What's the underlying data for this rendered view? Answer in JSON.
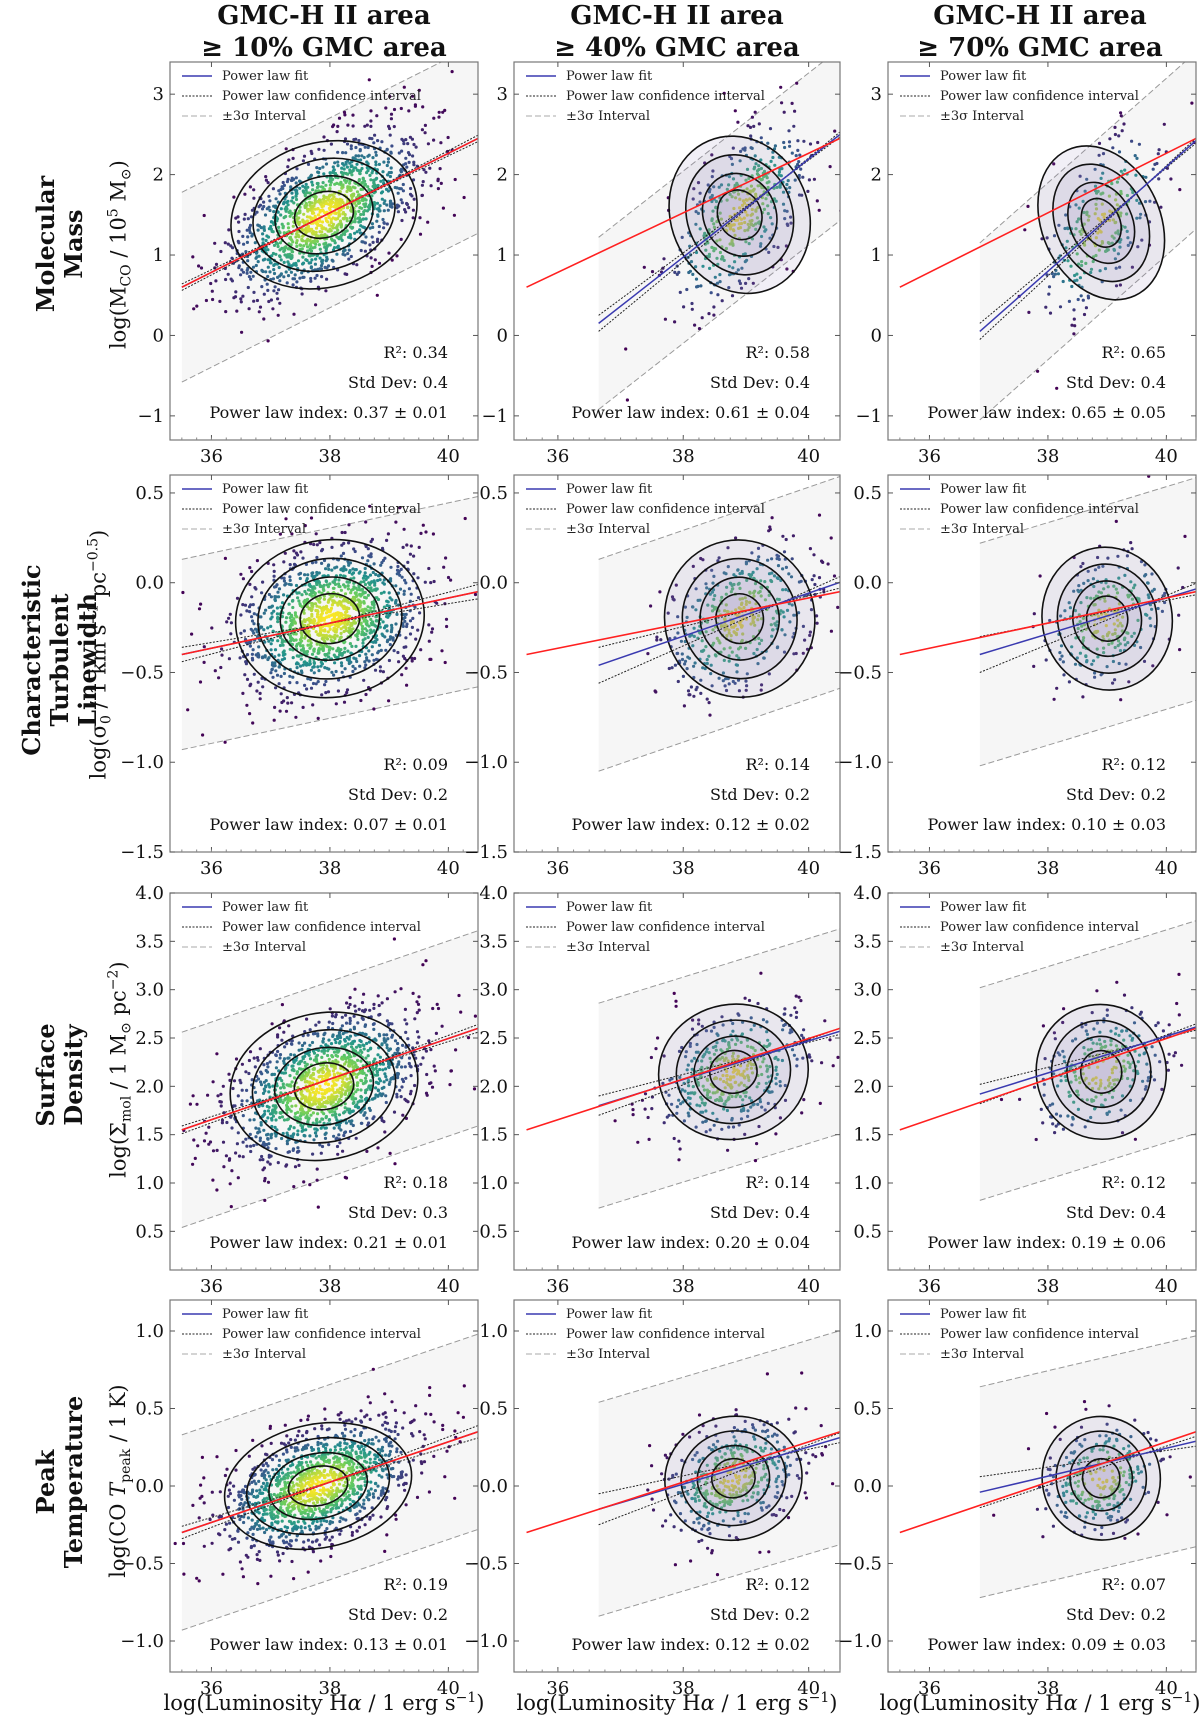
{
  "column_titles": [
    {
      "line1": "GMC-H II area",
      "line2": "≥ 10% GMC area"
    },
    {
      "line1": "GMC-H II area",
      "line2": "≥ 40% GMC area"
    },
    {
      "line1": "GMC-H II area",
      "line2": "≥ 70% GMC area"
    }
  ],
  "row_titles": [
    {
      "title": "Molecular Mass",
      "lines": [
        "Molecular",
        "Mass"
      ],
      "ylabel": "log(M_CO / 10^5 M⊙)"
    },
    {
      "title": "Characteristic Turbulent Linewidth",
      "lines": [
        "Characteristic",
        "Turbulent",
        "Linewidth"
      ],
      "ylabel": "log(σ0 / 1 km s^-1 pc^-0.5)"
    },
    {
      "title": "Surface Density",
      "lines": [
        "Surface",
        "Density"
      ],
      "ylabel": "log(Σmol / 1 M⊙ pc^-2)"
    },
    {
      "title": "Peak Temperature",
      "lines": [
        "Peak",
        "Temperature"
      ],
      "ylabel": "log(CO T_peak / 1 K)"
    }
  ],
  "xlabel": "log(Luminosity Hα / 1 erg s⁻¹)",
  "legend": {
    "fit": "Power law fit",
    "ci": "Power law confidence interval",
    "sigma": "±3σ Interval"
  },
  "stat_labels": {
    "r2": "R²: ",
    "std": "Std Dev: ",
    "index": "Power law index: "
  },
  "colors": {
    "fit": "#3a3ab0",
    "reference": "#ff2020",
    "scatter_low": "#440154",
    "scatter_high": "#fde725",
    "band": "#f6f6f6",
    "kde_fill": "#8a7fb8"
  },
  "chart_data": [
    {
      "type": "scatter",
      "row": 0,
      "col": 0,
      "xlim": [
        35.3,
        40.5
      ],
      "ylim": [
        -1.3,
        3.4
      ],
      "xticks": [
        36,
        38,
        40
      ],
      "yticks": [
        -1,
        0,
        1,
        2,
        3
      ],
      "ytick_labels": [
        "−1",
        "0",
        "1",
        "2",
        "3"
      ],
      "fit": {
        "slope": 0.37,
        "intercept": 0.6,
        "x0": 35.5
      },
      "reference": {
        "slope": 0.37,
        "intercept": 0.6,
        "x0": 35.5
      },
      "sigma_width": 1.18,
      "band_x": [
        35.5,
        40.5
      ],
      "center": [
        37.9,
        1.5
      ],
      "spread": [
        0.8,
        0.45
      ],
      "n": 2600,
      "r2": "0.34",
      "std": "0.4",
      "index": "0.37 ± 0.01"
    },
    {
      "type": "scatter",
      "row": 0,
      "col": 1,
      "xlim": [
        35.3,
        40.5
      ],
      "ylim": [
        -1.3,
        3.4
      ],
      "xticks": [
        36,
        38,
        40
      ],
      "yticks": [
        -1,
        0,
        1,
        2,
        3
      ],
      "ytick_labels": [
        "−1",
        "0",
        "1",
        "2",
        "3"
      ],
      "fit": {
        "slope": 0.61,
        "intercept": 0.15,
        "x0": 36.65
      },
      "reference": {
        "slope": 0.37,
        "intercept": 0.6,
        "x0": 35.5
      },
      "sigma_width": 1.07,
      "band_x": [
        36.65,
        40.5
      ],
      "center": [
        38.9,
        1.5
      ],
      "spread": [
        0.55,
        0.5
      ],
      "n": 450,
      "r2": "0.58",
      "std": "0.4",
      "index": "0.61 ± 0.04"
    },
    {
      "type": "scatter",
      "row": 0,
      "col": 2,
      "xlim": [
        35.3,
        40.5
      ],
      "ylim": [
        -1.3,
        3.4
      ],
      "xticks": [
        36,
        38,
        40
      ],
      "yticks": [
        -1,
        0,
        1,
        2,
        3
      ],
      "ytick_labels": [
        "−1",
        "0",
        "1",
        "2",
        "3"
      ],
      "fit": {
        "slope": 0.65,
        "intercept": 0.05,
        "x0": 36.85
      },
      "reference": {
        "slope": 0.37,
        "intercept": 0.6,
        "x0": 35.5
      },
      "sigma_width": 1.1,
      "band_x": [
        36.85,
        40.5
      ],
      "center": [
        38.9,
        1.4
      ],
      "spread": [
        0.5,
        0.5
      ],
      "n": 260,
      "r2": "0.65",
      "std": "0.4",
      "index": "0.65 ± 0.05"
    },
    {
      "type": "scatter",
      "row": 1,
      "col": 0,
      "xlim": [
        35.3,
        40.5
      ],
      "ylim": [
        -1.5,
        0.6
      ],
      "xticks": [
        36,
        38,
        40
      ],
      "yticks": [
        -1.5,
        -1.0,
        -0.5,
        0.0,
        0.5
      ],
      "ytick_labels": [
        "−1.5",
        "−1.0",
        "−0.5",
        "0.0",
        "0.5"
      ],
      "fit": {
        "slope": 0.07,
        "intercept": -0.4,
        "x0": 35.5
      },
      "reference": {
        "slope": 0.07,
        "intercept": -0.4,
        "x0": 35.5
      },
      "sigma_width": 0.53,
      "band_x": [
        35.5,
        40.5
      ],
      "center": [
        38.0,
        -0.2
      ],
      "spread": [
        0.8,
        0.22
      ],
      "n": 2600,
      "r2": "0.09",
      "std": "0.2",
      "index": "0.07 ± 0.01"
    },
    {
      "type": "scatter",
      "row": 1,
      "col": 1,
      "xlim": [
        35.3,
        40.5
      ],
      "ylim": [
        -1.5,
        0.6
      ],
      "xticks": [
        36,
        38,
        40
      ],
      "yticks": [
        -1.5,
        -1.0,
        -0.5,
        0.0,
        0.5
      ],
      "ytick_labels": [
        "−1.5",
        "−1.0",
        "−0.5",
        "0.0",
        "0.5"
      ],
      "fit": {
        "slope": 0.12,
        "intercept": -0.46,
        "x0": 36.65
      },
      "reference": {
        "slope": 0.07,
        "intercept": -0.4,
        "x0": 35.5
      },
      "sigma_width": 0.59,
      "band_x": [
        36.65,
        40.5
      ],
      "center": [
        38.9,
        -0.2
      ],
      "spread": [
        0.6,
        0.22
      ],
      "n": 450,
      "r2": "0.14",
      "std": "0.2",
      "index": "0.12 ± 0.02"
    },
    {
      "type": "scatter",
      "row": 1,
      "col": 2,
      "xlim": [
        35.3,
        40.5
      ],
      "ylim": [
        -1.5,
        0.6
      ],
      "xticks": [
        36,
        38,
        40
      ],
      "yticks": [
        -1.5,
        -1.0,
        -0.5,
        0.0,
        0.5
      ],
      "ytick_labels": [
        "−1.5",
        "−1.0",
        "−0.5",
        "0.0",
        "0.5"
      ],
      "fit": {
        "slope": 0.1,
        "intercept": -0.4,
        "x0": 36.85
      },
      "reference": {
        "slope": 0.07,
        "intercept": -0.4,
        "x0": 35.5
      },
      "sigma_width": 0.62,
      "band_x": [
        36.85,
        40.5
      ],
      "center": [
        39.0,
        -0.2
      ],
      "spread": [
        0.55,
        0.2
      ],
      "n": 260,
      "r2": "0.12",
      "std": "0.2",
      "index": "0.10 ± 0.03"
    },
    {
      "type": "scatter",
      "row": 2,
      "col": 0,
      "xlim": [
        35.3,
        40.5
      ],
      "ylim": [
        0.1,
        4.0
      ],
      "xticks": [
        36,
        38,
        40
      ],
      "yticks": [
        0.5,
        1.0,
        1.5,
        2.0,
        2.5,
        3.0,
        3.5,
        4.0
      ],
      "ytick_labels": [
        "0.5",
        "1.0",
        "1.5",
        "2.0",
        "2.5",
        "3.0",
        "3.5",
        "4.0"
      ],
      "fit": {
        "slope": 0.21,
        "intercept": 1.55,
        "x0": 35.5
      },
      "reference": {
        "slope": 0.21,
        "intercept": 1.55,
        "x0": 35.5
      },
      "sigma_width": 1.01,
      "band_x": [
        35.5,
        40.5
      ],
      "center": [
        37.9,
        2.0
      ],
      "spread": [
        0.8,
        0.38
      ],
      "n": 2600,
      "r2": "0.18",
      "std": "0.3",
      "index": "0.21 ± 0.01"
    },
    {
      "type": "scatter",
      "row": 2,
      "col": 1,
      "xlim": [
        35.3,
        40.5
      ],
      "ylim": [
        0.1,
        4.0
      ],
      "xticks": [
        36,
        38,
        40
      ],
      "yticks": [
        0.5,
        1.0,
        1.5,
        2.0,
        2.5,
        3.0,
        3.5,
        4.0
      ],
      "ytick_labels": [
        "0.5",
        "1.0",
        "1.5",
        "2.0",
        "2.5",
        "3.0",
        "3.5",
        "4.0"
      ],
      "fit": {
        "slope": 0.2,
        "intercept": 1.8,
        "x0": 36.65
      },
      "reference": {
        "slope": 0.21,
        "intercept": 1.55,
        "x0": 35.5
      },
      "sigma_width": 1.06,
      "band_x": [
        36.65,
        40.5
      ],
      "center": [
        38.8,
        2.15
      ],
      "spread": [
        0.6,
        0.35
      ],
      "n": 450,
      "r2": "0.14",
      "std": "0.4",
      "index": "0.20 ± 0.04"
    },
    {
      "type": "scatter",
      "row": 2,
      "col": 2,
      "xlim": [
        35.3,
        40.5
      ],
      "ylim": [
        0.1,
        4.0
      ],
      "xticks": [
        36,
        38,
        40
      ],
      "yticks": [
        0.5,
        1.0,
        1.5,
        2.0,
        2.5,
        3.0,
        3.5,
        4.0
      ],
      "ytick_labels": [
        "0.5",
        "1.0",
        "1.5",
        "2.0",
        "2.5",
        "3.0",
        "3.5",
        "4.0"
      ],
      "fit": {
        "slope": 0.19,
        "intercept": 1.92,
        "x0": 36.85
      },
      "reference": {
        "slope": 0.21,
        "intercept": 1.55,
        "x0": 35.5
      },
      "sigma_width": 1.1,
      "band_x": [
        36.85,
        40.5
      ],
      "center": [
        38.9,
        2.15
      ],
      "spread": [
        0.55,
        0.35
      ],
      "n": 260,
      "r2": "0.12",
      "std": "0.4",
      "index": "0.19 ± 0.06"
    },
    {
      "type": "scatter",
      "row": 3,
      "col": 0,
      "xlim": [
        35.3,
        40.5
      ],
      "ylim": [
        -1.2,
        1.2
      ],
      "xticks": [
        36,
        38,
        40
      ],
      "yticks": [
        -1.0,
        -0.5,
        0.0,
        0.5,
        1.0
      ],
      "ytick_labels": [
        "−1.0",
        "−0.5",
        "0.0",
        "0.5",
        "1.0"
      ],
      "fit": {
        "slope": 0.13,
        "intercept": -0.3,
        "x0": 35.5
      },
      "reference": {
        "slope": 0.13,
        "intercept": -0.3,
        "x0": 35.5
      },
      "sigma_width": 0.63,
      "band_x": [
        35.5,
        40.5
      ],
      "center": [
        37.8,
        0.0
      ],
      "spread": [
        0.8,
        0.2
      ],
      "n": 2600,
      "r2": "0.19",
      "std": "0.2",
      "index": "0.13 ± 0.01"
    },
    {
      "type": "scatter",
      "row": 3,
      "col": 1,
      "xlim": [
        35.3,
        40.5
      ],
      "ylim": [
        -1.2,
        1.2
      ],
      "xticks": [
        36,
        38,
        40
      ],
      "yticks": [
        -1.0,
        -0.5,
        0.0,
        0.5,
        1.0
      ],
      "ytick_labels": [
        "−1.0",
        "−0.5",
        "0.0",
        "0.5",
        "1.0"
      ],
      "fit": {
        "slope": 0.12,
        "intercept": -0.15,
        "x0": 36.65
      },
      "reference": {
        "slope": 0.13,
        "intercept": -0.3,
        "x0": 35.5
      },
      "sigma_width": 0.69,
      "band_x": [
        36.65,
        40.5
      ],
      "center": [
        38.8,
        0.05
      ],
      "spread": [
        0.55,
        0.2
      ],
      "n": 450,
      "r2": "0.12",
      "std": "0.2",
      "index": "0.12 ± 0.02"
    },
    {
      "type": "scatter",
      "row": 3,
      "col": 2,
      "xlim": [
        35.3,
        40.5
      ],
      "ylim": [
        -1.2,
        1.2
      ],
      "xticks": [
        36,
        38,
        40
      ],
      "yticks": [
        -1.0,
        -0.5,
        0.0,
        0.5,
        1.0
      ],
      "ytick_labels": [
        "−1.0",
        "−0.5",
        "0.0",
        "0.5",
        "1.0"
      ],
      "fit": {
        "slope": 0.09,
        "intercept": -0.04,
        "x0": 36.85
      },
      "reference": {
        "slope": 0.13,
        "intercept": -0.3,
        "x0": 35.5
      },
      "sigma_width": 0.68,
      "band_x": [
        36.85,
        40.5
      ],
      "center": [
        38.9,
        0.05
      ],
      "spread": [
        0.5,
        0.2
      ],
      "n": 260,
      "r2": "0.07",
      "std": "0.2",
      "index": "0.09 ± 0.03"
    }
  ]
}
